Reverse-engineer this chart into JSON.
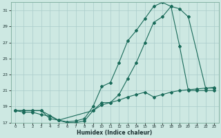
{
  "xlabel": "Humidex (Indice chaleur)",
  "bg_color": "#cde8e2",
  "grid_color": "#aaccca",
  "line_color": "#1a6b5a",
  "xlim_min": -0.5,
  "xlim_max": 23.5,
  "ylim_min": 17,
  "ylim_max": 32,
  "yticks": [
    17,
    19,
    21,
    23,
    25,
    27,
    29,
    31
  ],
  "xticks": [
    0,
    1,
    2,
    3,
    4,
    5,
    6,
    7,
    8,
    9,
    10,
    11,
    12,
    13,
    14,
    15,
    16,
    17,
    18,
    19,
    20,
    21,
    22,
    23
  ],
  "line1_x": [
    0,
    1,
    2,
    3,
    4,
    5,
    6,
    7,
    8,
    9,
    10,
    11,
    12,
    13,
    14,
    15,
    16,
    17,
    18,
    19,
    20,
    21,
    22,
    23
  ],
  "line1_y": [
    18.5,
    18.5,
    18.5,
    18.5,
    17.5,
    17.3,
    17.1,
    17.2,
    17.5,
    19.0,
    21.5,
    22.0,
    24.5,
    27.2,
    28.5,
    30.0,
    31.5,
    32.0,
    31.5,
    26.5,
    21.0,
    21.0,
    21.0,
    21.0
  ],
  "line2_x": [
    0,
    1,
    2,
    3,
    5,
    9,
    10,
    11,
    12,
    13,
    14,
    15,
    16,
    17,
    18,
    19,
    20,
    22,
    23
  ],
  "line2_y": [
    18.5,
    18.5,
    18.5,
    18.5,
    17.3,
    18.5,
    19.5,
    19.5,
    20.5,
    22.5,
    24.5,
    27.0,
    29.5,
    30.2,
    31.5,
    31.2,
    30.2,
    21.3,
    21.3
  ],
  "line3_x": [
    0,
    1,
    2,
    3,
    4,
    5,
    6,
    7,
    8,
    9,
    10,
    11,
    12,
    13,
    14,
    15,
    16,
    17,
    18,
    19,
    20,
    21,
    22,
    23
  ],
  "line3_y": [
    18.5,
    18.3,
    18.3,
    18.0,
    17.8,
    17.3,
    17.0,
    17.0,
    17.2,
    18.5,
    19.2,
    19.5,
    19.8,
    20.2,
    20.5,
    20.8,
    20.2,
    20.5,
    20.8,
    21.0,
    21.1,
    21.2,
    21.3,
    21.4
  ]
}
